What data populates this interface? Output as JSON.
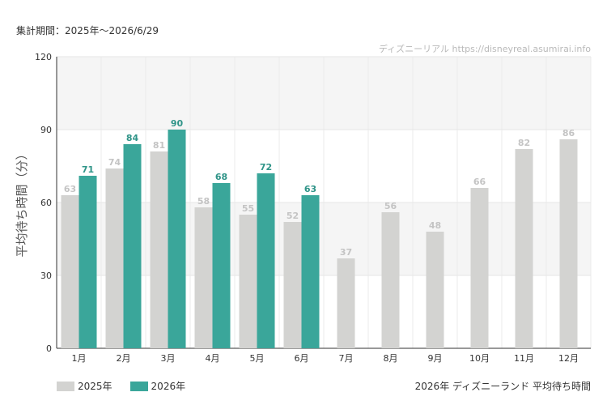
{
  "header": {
    "period": "集計期間：2025年～2026/6/29",
    "watermark": "ディズニーリアル https://disneyreal.asumirai.info"
  },
  "footer": {
    "caption": "2026年 ディズニーランド 平均待ち時間"
  },
  "chart_data": {
    "type": "bar",
    "title": "",
    "xlabel": "",
    "ylabel": "平均待ち時間（分）",
    "categories": [
      "1月",
      "2月",
      "3月",
      "4月",
      "5月",
      "6月",
      "7月",
      "8月",
      "9月",
      "10月",
      "11月",
      "12月"
    ],
    "series": [
      {
        "name": "2025年",
        "color": "#d3d3d1",
        "labelColor": "#c4c4c4",
        "values": [
          63,
          74,
          81,
          58,
          55,
          52,
          37,
          56,
          48,
          66,
          82,
          86
        ]
      },
      {
        "name": "2026年",
        "color": "#3aa69a",
        "labelColor": "#2f9488",
        "values": [
          71,
          84,
          90,
          68,
          72,
          63,
          null,
          null,
          null,
          null,
          null,
          null
        ]
      }
    ],
    "ylim": [
      0,
      120
    ],
    "yticks": [
      0,
      30,
      60,
      90,
      120
    ],
    "grid": true,
    "legend": "bottom-left"
  }
}
